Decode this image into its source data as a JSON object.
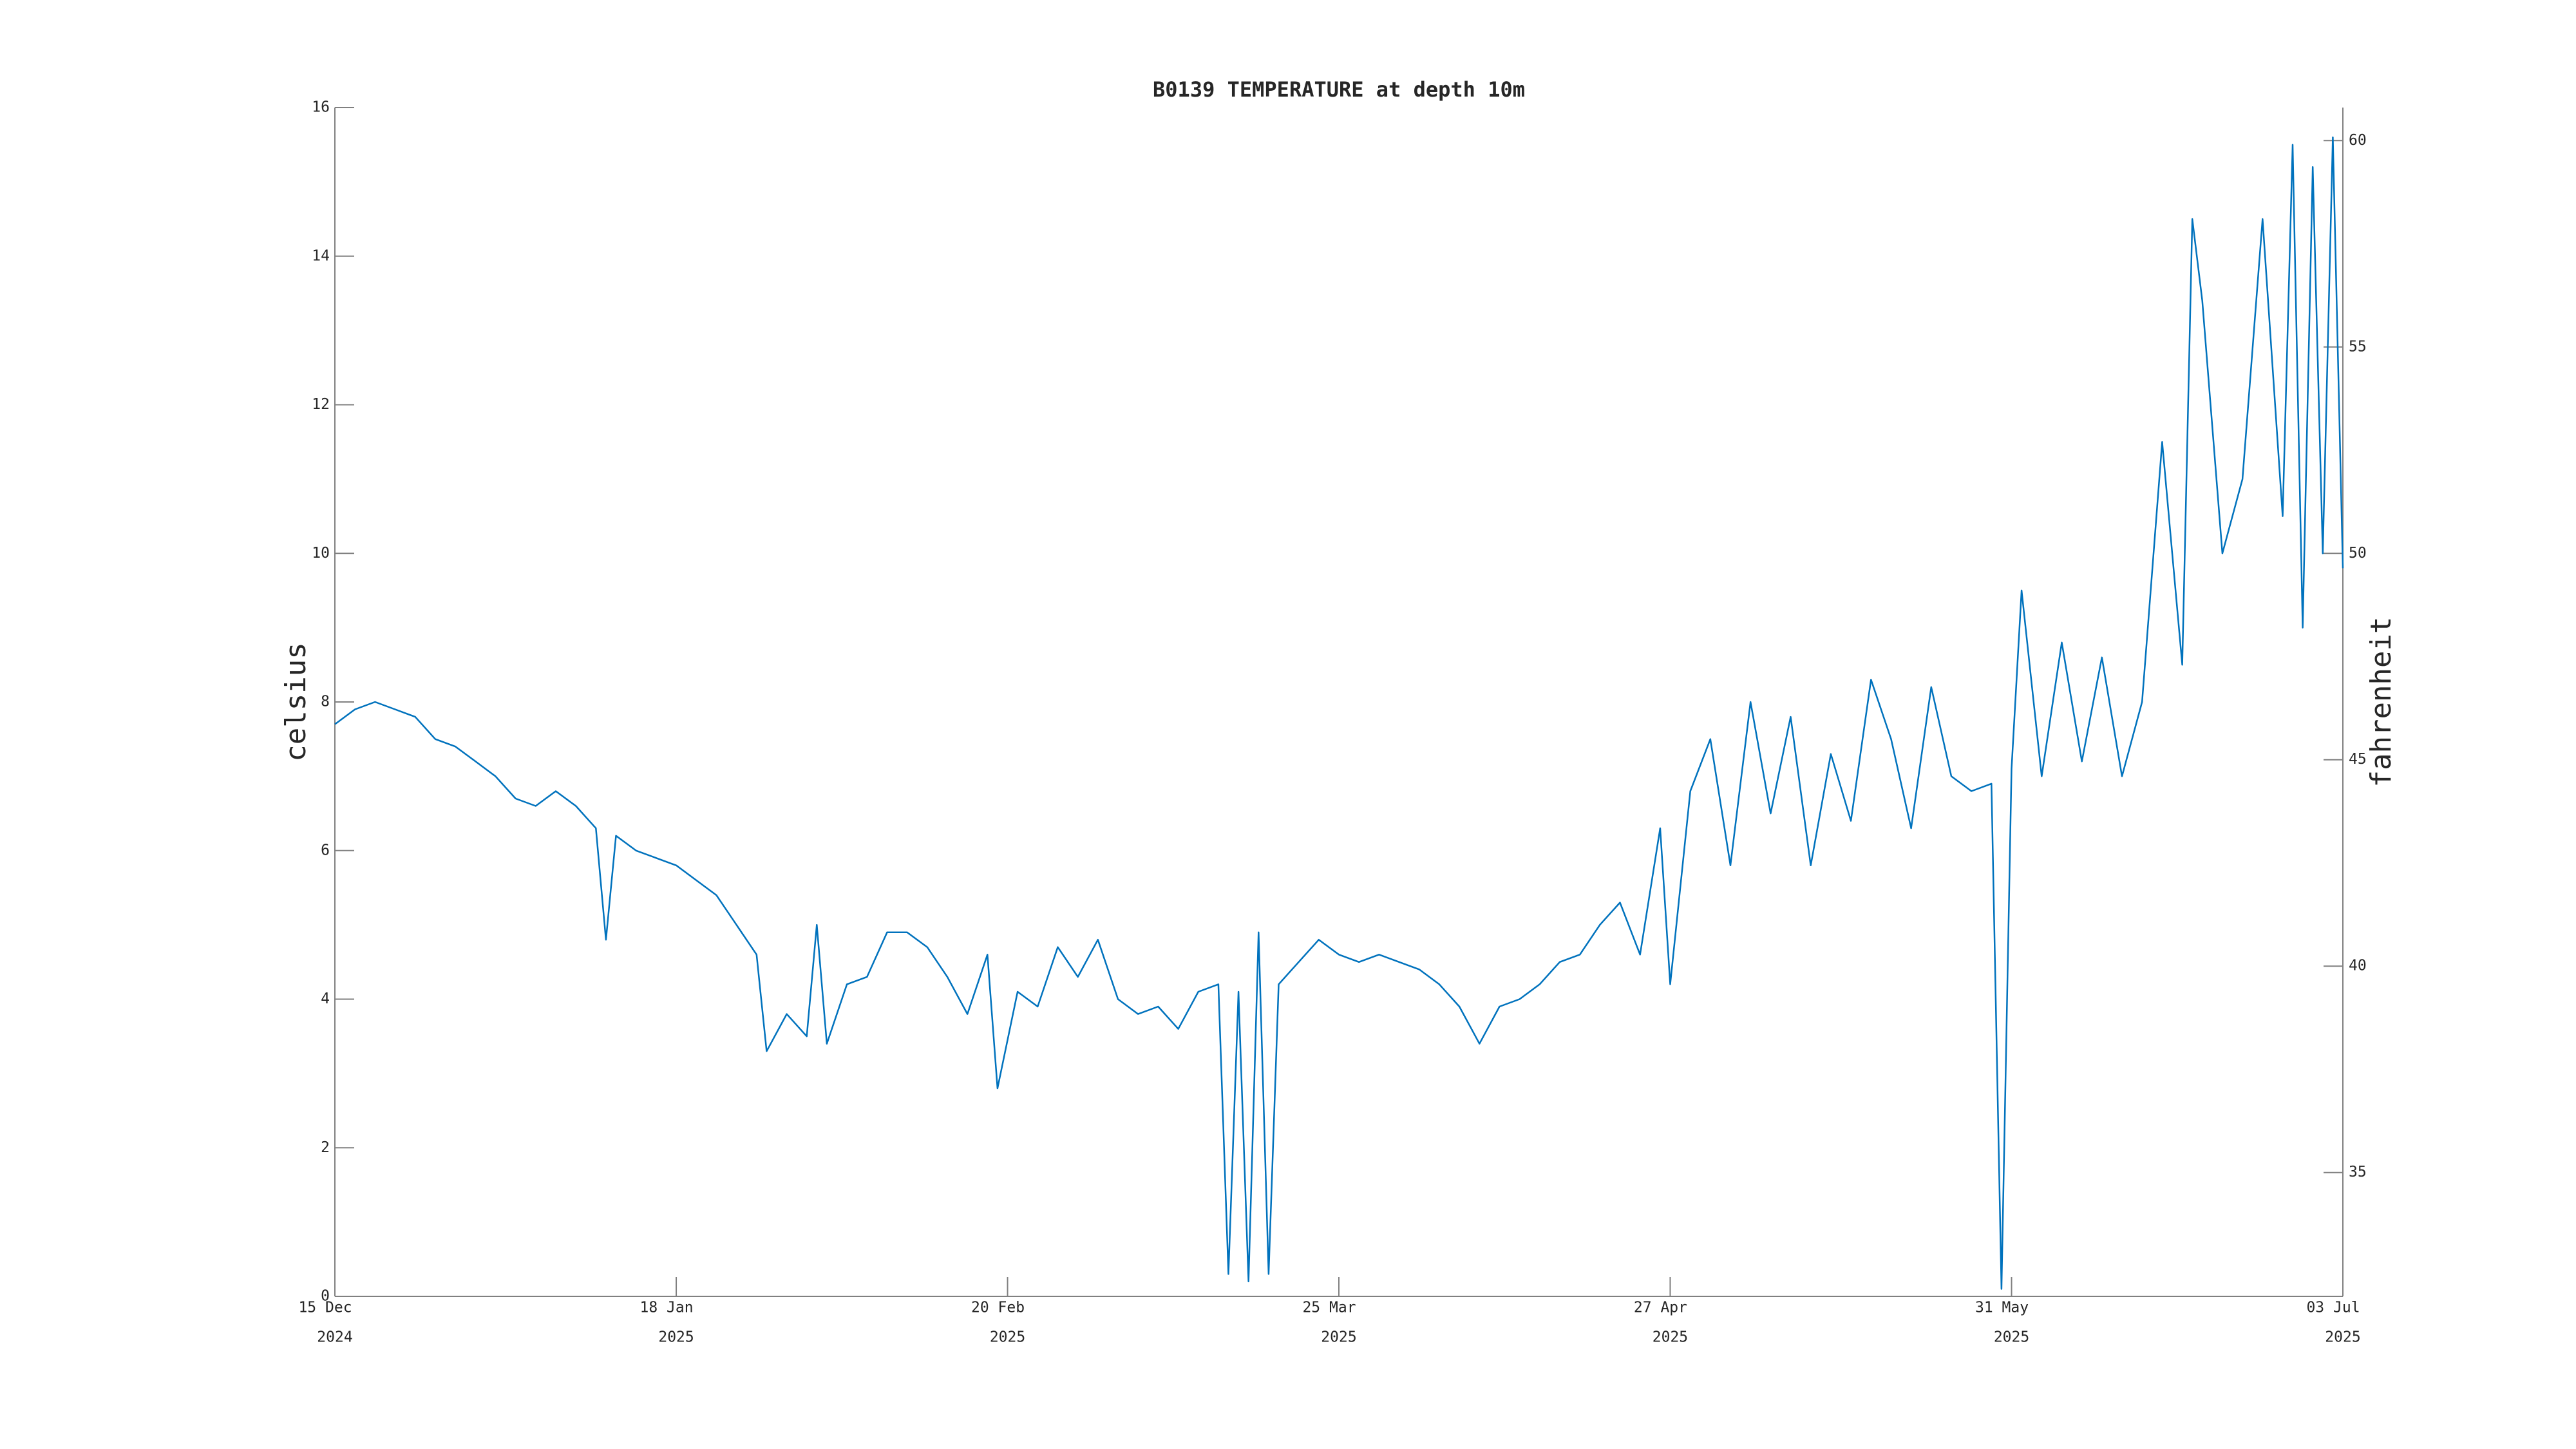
{
  "chart_data": {
    "type": "line",
    "title": "B0139 TEMPERATURE at depth 10m",
    "ylabel": "celsius",
    "y2label": "fahrenheit",
    "color": "#0072bd",
    "xlim": [
      "2024-12-15",
      "2025-07-03"
    ],
    "xticks": [
      {
        "value": "2024-12-15",
        "label": [
          "15 Dec",
          "2024"
        ]
      },
      {
        "value": "2025-01-18",
        "label": [
          "18 Jan",
          "2025"
        ]
      },
      {
        "value": "2025-02-20",
        "label": [
          "20 Feb",
          "2025"
        ]
      },
      {
        "value": "2025-03-25",
        "label": [
          "25 Mar",
          "2025"
        ]
      },
      {
        "value": "2025-04-27",
        "label": [
          "27 Apr",
          "2025"
        ]
      },
      {
        "value": "2025-05-31",
        "label": [
          "31 May",
          "2025"
        ]
      },
      {
        "value": "2025-07-03",
        "label": [
          "03 Jul",
          "2025"
        ]
      }
    ],
    "ylim": [
      0,
      16
    ],
    "yticks": [
      0,
      2,
      4,
      6,
      8,
      10,
      12,
      14,
      16
    ],
    "y2lim": [
      32,
      60.8
    ],
    "y2ticks": [
      35,
      40,
      45,
      50,
      55,
      60
    ],
    "x": [
      "2024-12-15",
      "2024-12-17",
      "2024-12-19",
      "2024-12-21",
      "2024-12-23",
      "2024-12-25",
      "2024-12-27",
      "2024-12-29",
      "2024-12-31",
      "2025-01-02",
      "2025-01-04",
      "2025-01-06",
      "2025-01-08",
      "2025-01-10",
      "2025-01-11",
      "2025-01-12",
      "2025-01-14",
      "2025-01-16",
      "2025-01-18",
      "2025-01-20",
      "2025-01-22",
      "2025-01-24",
      "2025-01-26",
      "2025-01-27",
      "2025-01-29",
      "2025-01-31",
      "2025-02-01",
      "2025-02-02",
      "2025-02-04",
      "2025-02-06",
      "2025-02-08",
      "2025-02-10",
      "2025-02-12",
      "2025-02-14",
      "2025-02-16",
      "2025-02-18",
      "2025-02-19",
      "2025-02-21",
      "2025-02-23",
      "2025-02-25",
      "2025-02-27",
      "2025-03-01",
      "2025-03-03",
      "2025-03-05",
      "2025-03-07",
      "2025-03-09",
      "2025-03-11",
      "2025-03-13",
      "2025-03-14",
      "2025-03-15",
      "2025-03-16",
      "2025-03-17",
      "2025-03-18",
      "2025-03-19",
      "2025-03-21",
      "2025-03-23",
      "2025-03-25",
      "2025-03-27",
      "2025-03-29",
      "2025-03-31",
      "2025-04-02",
      "2025-04-04",
      "2025-04-06",
      "2025-04-08",
      "2025-04-10",
      "2025-04-12",
      "2025-04-14",
      "2025-04-16",
      "2025-04-18",
      "2025-04-20",
      "2025-04-22",
      "2025-04-24",
      "2025-04-26",
      "2025-04-27",
      "2025-04-29",
      "2025-05-01",
      "2025-05-03",
      "2025-05-05",
      "2025-05-07",
      "2025-05-09",
      "2025-05-11",
      "2025-05-13",
      "2025-05-15",
      "2025-05-17",
      "2025-05-19",
      "2025-05-21",
      "2025-05-23",
      "2025-05-25",
      "2025-05-27",
      "2025-05-29",
      "2025-05-30",
      "2025-05-31",
      "2025-06-01",
      "2025-06-03",
      "2025-06-05",
      "2025-06-07",
      "2025-06-09",
      "2025-06-11",
      "2025-06-13",
      "2025-06-15",
      "2025-06-17",
      "2025-06-18",
      "2025-06-19",
      "2025-06-21",
      "2025-06-23",
      "2025-06-25",
      "2025-06-27",
      "2025-06-28",
      "2025-06-29",
      "2025-06-30",
      "2025-07-01",
      "2025-07-02",
      "2025-07-03"
    ],
    "values": [
      7.7,
      7.9,
      8.0,
      7.9,
      7.8,
      7.5,
      7.4,
      7.2,
      7.0,
      6.7,
      6.6,
      6.8,
      6.6,
      6.3,
      4.8,
      6.2,
      6.0,
      5.9,
      5.8,
      5.6,
      5.4,
      5.0,
      4.6,
      3.3,
      3.8,
      3.5,
      5.0,
      3.4,
      4.2,
      4.3,
      4.9,
      4.9,
      4.7,
      4.3,
      3.8,
      4.6,
      2.8,
      4.1,
      3.9,
      4.7,
      4.3,
      4.8,
      4.0,
      3.8,
      3.9,
      3.6,
      4.1,
      4.2,
      0.3,
      4.1,
      0.2,
      4.9,
      0.3,
      4.2,
      4.5,
      4.8,
      4.6,
      4.5,
      4.6,
      4.5,
      4.4,
      4.2,
      3.9,
      3.4,
      3.9,
      4.0,
      4.2,
      4.5,
      4.6,
      5.0,
      5.3,
      4.6,
      6.3,
      4.2,
      6.8,
      7.5,
      5.8,
      8.0,
      6.5,
      7.8,
      5.8,
      7.3,
      6.4,
      8.3,
      7.5,
      6.3,
      8.2,
      7.0,
      6.8,
      6.9,
      0.1,
      7.1,
      9.5,
      7.0,
      8.8,
      7.2,
      8.6,
      7.0,
      8.0,
      11.5,
      8.5,
      14.5,
      13.4,
      10.0,
      11.0,
      14.5,
      10.5,
      15.5,
      9.0,
      15.2,
      10.0,
      15.6,
      9.8
    ]
  }
}
